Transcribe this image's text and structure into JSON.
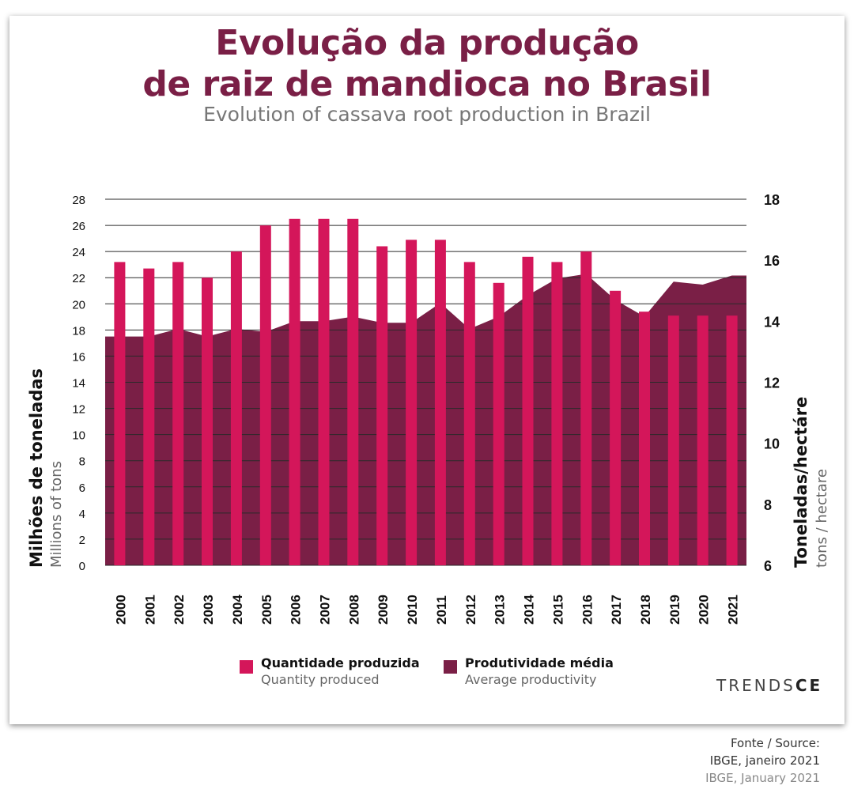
{
  "header": {
    "title_line1": "Evolução da produção",
    "title_line2": "de raiz de mandioca no Brasil",
    "subtitle": "Evolution of cassava root production in Brazil"
  },
  "chart_data": {
    "type": "bar",
    "categories": [
      "2000",
      "2001",
      "2002",
      "2003",
      "2004",
      "2005",
      "2006",
      "2007",
      "2008",
      "2009",
      "2010",
      "2011",
      "2012",
      "2013",
      "2014",
      "2015",
      "2016",
      "2017",
      "2018",
      "2019",
      "2020",
      "2021"
    ],
    "series": [
      {
        "name": "Quantidade produzida",
        "name_en": "Quantity produced",
        "type": "bar",
        "axis": "left",
        "color": "#d4165a",
        "values": [
          23.2,
          22.7,
          23.2,
          22.0,
          24.0,
          26.0,
          26.5,
          26.5,
          26.5,
          24.4,
          24.9,
          24.9,
          23.2,
          21.6,
          23.6,
          23.2,
          24.0,
          21.0,
          19.4,
          19.1,
          19.1,
          19.1
        ]
      },
      {
        "name": "Produtividade média",
        "name_en": "Average productivity",
        "type": "area",
        "axis": "right",
        "color": "#7a1f46",
        "values": [
          13.5,
          13.5,
          13.75,
          13.5,
          13.75,
          13.65,
          14.0,
          14.0,
          14.15,
          13.95,
          13.95,
          14.6,
          13.75,
          14.15,
          14.85,
          15.4,
          15.55,
          14.7,
          14.15,
          15.3,
          15.2,
          15.5
        ]
      }
    ],
    "y_left": {
      "label": "Milhões de toneladas",
      "label_en": "Millions of tons",
      "ylim": [
        0,
        28
      ],
      "ticks": [
        "0",
        "2",
        "4",
        "6",
        "8",
        "10",
        "12",
        "14",
        "16",
        "18",
        "20",
        "22",
        "24",
        "26",
        "28"
      ]
    },
    "y_right": {
      "label": "Toneladas/hectáre",
      "label_en": "tons / hectare",
      "ylim": [
        6,
        18
      ],
      "ticks": [
        "6",
        "8",
        "10",
        "12",
        "14",
        "16",
        "18"
      ]
    },
    "grid": true,
    "legend_position": "bottom"
  },
  "brand": {
    "part1": "TRENDS",
    "part2": "CE"
  },
  "source": {
    "line1": "Fonte / Source:",
    "line2": "IBGE, janeiro 2021",
    "line3": "IBGE, January 2021"
  }
}
